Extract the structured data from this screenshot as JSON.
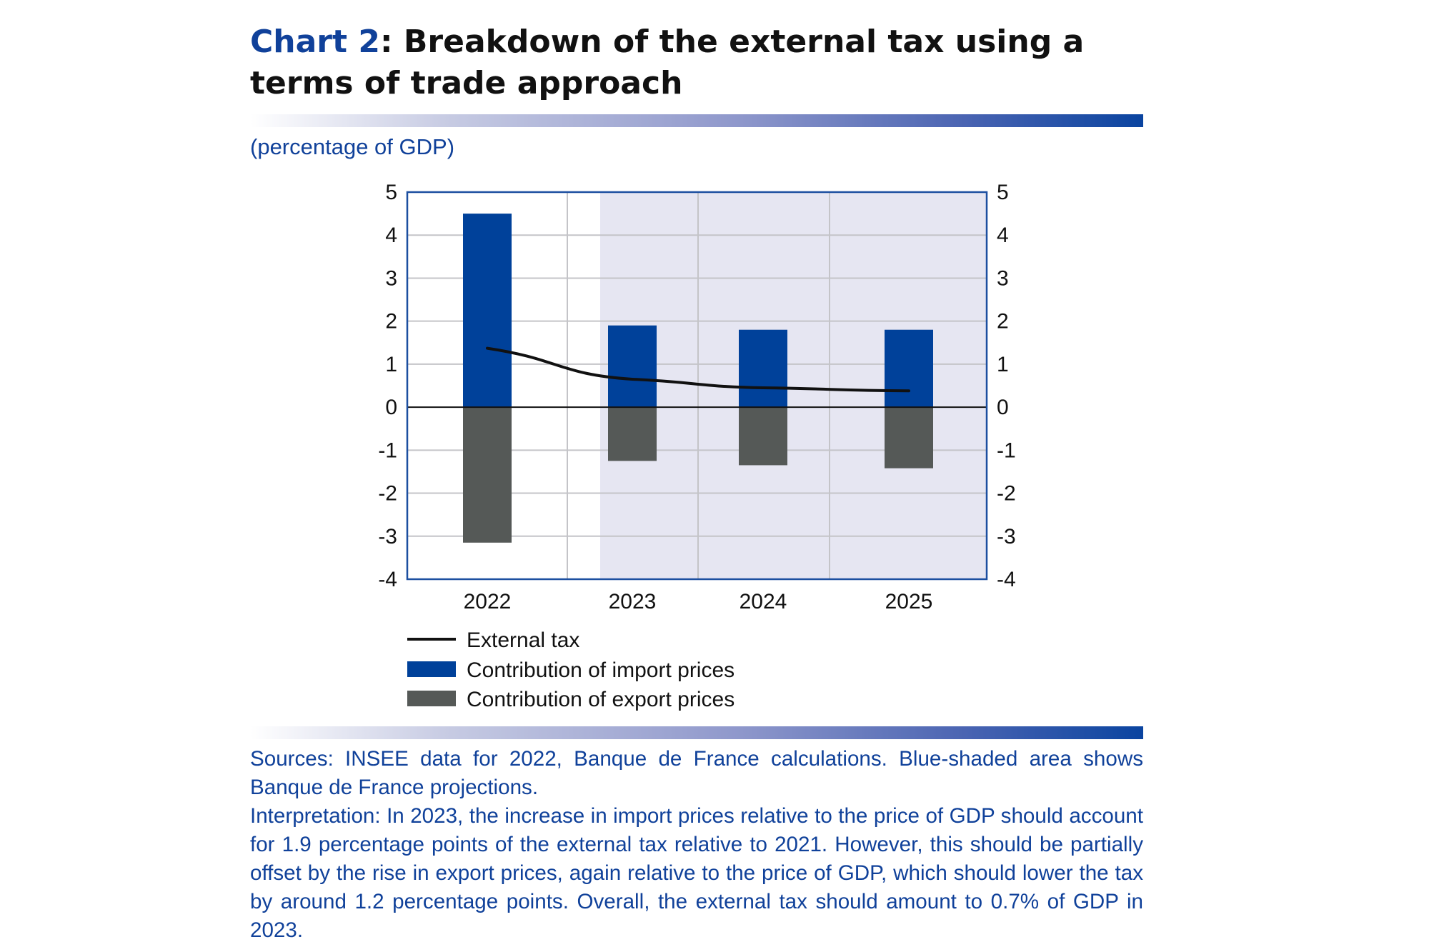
{
  "header": {
    "chart_number": "Chart 2",
    "title_rest": ": Breakdown of the external tax using a terms of trade approach"
  },
  "units_label": "(percentage of GDP)",
  "chart_data": {
    "type": "bar",
    "categories": [
      "2022",
      "2023",
      "2024",
      "2025"
    ],
    "series": [
      {
        "name": "Contribution of import prices",
        "kind": "bar",
        "color": "#00419a",
        "values": [
          4.5,
          1.9,
          1.8,
          1.8
        ]
      },
      {
        "name": "Contribution of export prices",
        "kind": "bar",
        "color": "#555957",
        "values": [
          -3.15,
          -1.25,
          -1.35,
          -1.42
        ]
      },
      {
        "name": "External tax",
        "kind": "line",
        "color": "#111111",
        "values": [
          1.37,
          0.65,
          0.45,
          0.38
        ]
      }
    ],
    "ylim": [
      -4,
      5
    ],
    "yticks": [
      "5",
      "4",
      "3",
      "2",
      "1",
      "0",
      "-1",
      "-2",
      "-3",
      "-4"
    ],
    "dual_y_axis": true,
    "grid": true,
    "projection_shading": {
      "from_category": "2023",
      "color": "#e6e6f2"
    },
    "legend": {
      "placement": "bottom",
      "order": [
        "External tax",
        "Contribution of import prices",
        "Contribution of export prices"
      ]
    }
  },
  "notes": {
    "sources": "Sources: INSEE data for 2022, Banque de France calculations. Blue-shaded area shows Banque de France projections.",
    "interpretation": "Interpretation: In 2023, the increase in import prices relative to the price of GDP should account for 1.9 percentage points of the external tax relative to 2021. However, this should be partially offset by the rise in export prices, again relative to the price of GDP, which should lower the tax by around 1.2 percentage points. Overall, the external tax should amount to 0.7% of GDP in 2023."
  }
}
